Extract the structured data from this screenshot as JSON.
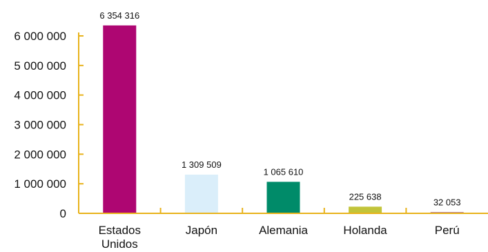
{
  "chart_data": {
    "type": "bar",
    "categories": [
      [
        "Estados",
        "Unidos"
      ],
      [
        "Japón"
      ],
      [
        "Alemania"
      ],
      [
        "Holanda"
      ],
      [
        "Perú"
      ]
    ],
    "values": [
      6354316,
      1309509,
      1065610,
      225638,
      32053
    ],
    "value_labels": [
      "6 354 316",
      "1 309 509",
      "1 065 610",
      "225 638",
      "32 053"
    ],
    "bar_colors": [
      "#ae0672",
      "#daeefa",
      "#008b69",
      "#c2c43a",
      "#7a0c34"
    ],
    "axis_color": "#e8b21a",
    "ylim": [
      0,
      6000000
    ],
    "yticks": [
      0,
      1000000,
      2000000,
      3000000,
      4000000,
      5000000,
      6000000
    ],
    "ytick_labels": [
      "0",
      "1 000 000",
      "2 000 000",
      "3 000 000",
      "4 000 000",
      "5 000 000",
      "6 000 000"
    ],
    "grid": false,
    "title": "",
    "xlabel": "",
    "ylabel": ""
  }
}
